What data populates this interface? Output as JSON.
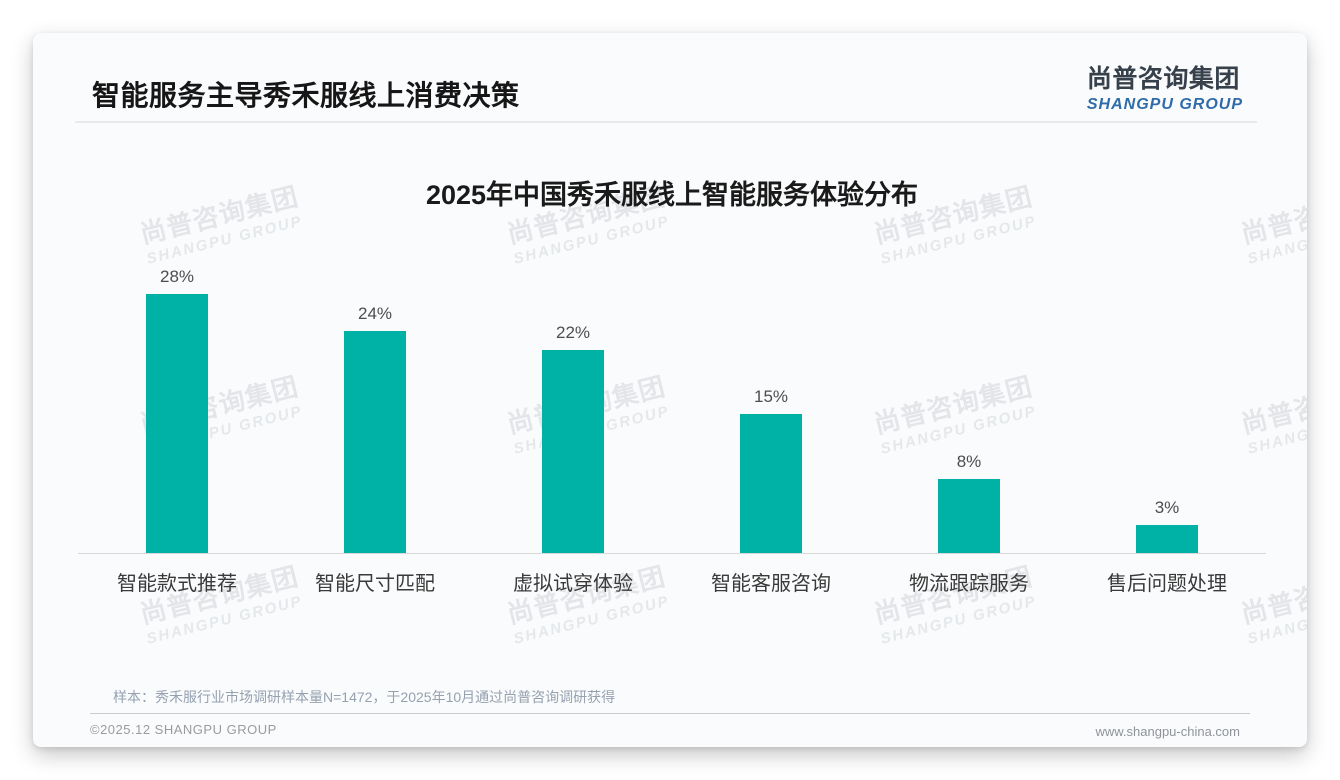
{
  "page": {
    "title": "智能服务主导秀禾服线上消费决策",
    "copyright": "©2025.12 SHANGPU GROUP",
    "website": "www.shangpu-china.com",
    "source_note": "样本：秀禾服行业市场调研样本量N=1472，于2025年10月通过尚普咨询调研获得"
  },
  "logo": {
    "cn": "尚普咨询集团",
    "en": "SHANGPU GROUP",
    "cn_color": "#37414c",
    "en_color": "#2f6ba8"
  },
  "watermark": {
    "line1": "尚普咨询集团",
    "line2": "SHANGPU GROUP"
  },
  "chart_data": {
    "type": "bar",
    "title": "2025年中国秀禾服线上智能服务体验分布",
    "categories": [
      "智能款式推荐",
      "智能尺寸匹配",
      "虚拟试穿体验",
      "智能客服咨询",
      "物流跟踪服务",
      "售后问题处理"
    ],
    "values": [
      28,
      24,
      22,
      15,
      8,
      3
    ],
    "value_labels": [
      "28%",
      "24%",
      "22%",
      "15%",
      "8%",
      "3%"
    ],
    "unit": "%",
    "bar_color": "#00b1a5",
    "grid": false,
    "legend": "none",
    "y_axis_visible": false,
    "value_label_position": "above-bars"
  }
}
